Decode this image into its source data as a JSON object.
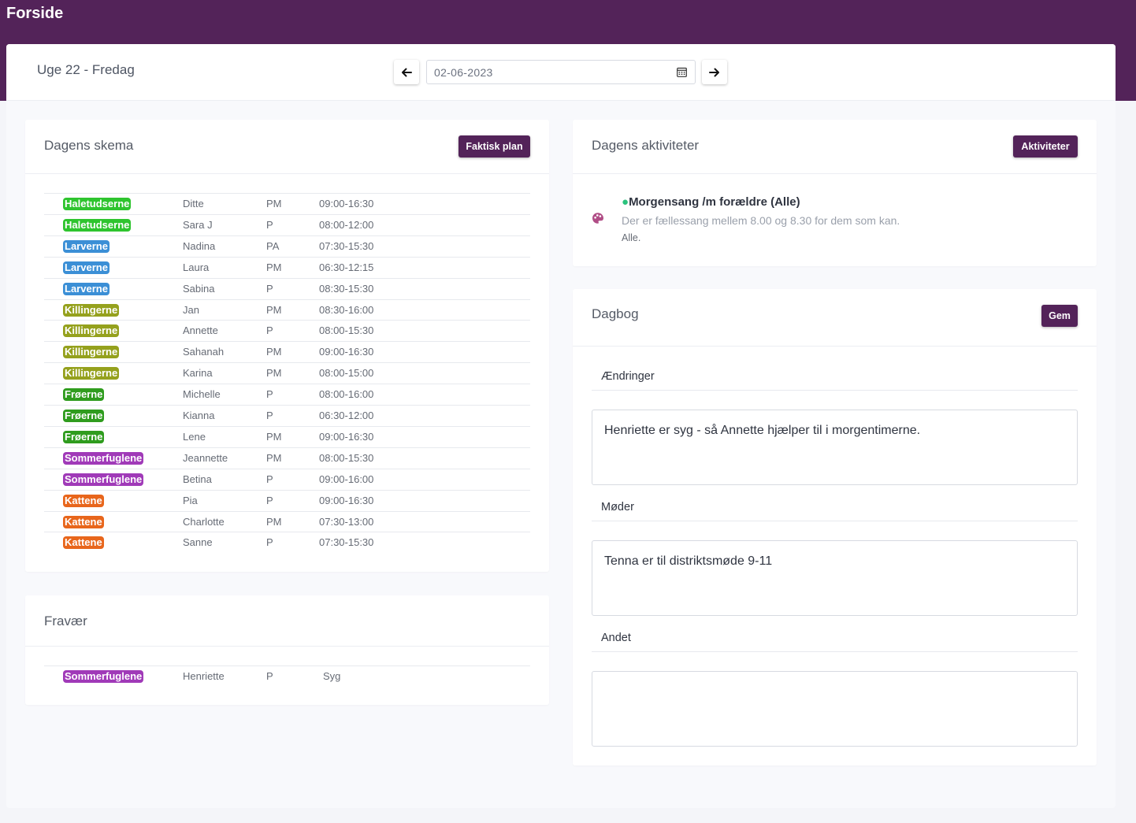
{
  "page": {
    "title": "Forside"
  },
  "header": {
    "week_label": "Uge 22 - Fredag",
    "date_value": "02-06-2023",
    "prev_icon": "arrow-left-icon",
    "next_icon": "arrow-right-icon",
    "calendar_icon": "calendar-icon"
  },
  "schedule": {
    "title": "Dagens skema",
    "button_label": "Faktisk plan",
    "rows": [
      {
        "group": "Haletudserne",
        "color": "#2ec42e",
        "name": "Ditte",
        "code": "PM",
        "time": "09:00-16:30"
      },
      {
        "group": "Haletudserne",
        "color": "#2ec42e",
        "name": "Sara J",
        "code": "P",
        "time": "08:00-12:00"
      },
      {
        "group": "Larverne",
        "color": "#3b8fd6",
        "name": "Nadina",
        "code": "PA",
        "time": "07:30-15:30"
      },
      {
        "group": "Larverne",
        "color": "#3b8fd6",
        "name": "Laura",
        "code": "PM",
        "time": "06:30-12:15"
      },
      {
        "group": "Larverne",
        "color": "#3b8fd6",
        "name": "Sabina",
        "code": "P",
        "time": "08:30-15:30"
      },
      {
        "group": "Killingerne",
        "color": "#95a11d",
        "name": "Jan",
        "code": "PM",
        "time": "08:30-16:00"
      },
      {
        "group": "Killingerne",
        "color": "#95a11d",
        "name": "Annette",
        "code": "P",
        "time": "08:00-15:30"
      },
      {
        "group": "Killingerne",
        "color": "#95a11d",
        "name": "Sahanah",
        "code": "PM",
        "time": "09:00-16:30"
      },
      {
        "group": "Killingerne",
        "color": "#95a11d",
        "name": "Karina",
        "code": "PM",
        "time": "08:00-15:00"
      },
      {
        "group": "Frøerne",
        "color": "#2f9c1e",
        "name": "Michelle",
        "code": "P",
        "time": "08:00-16:00"
      },
      {
        "group": "Frøerne",
        "color": "#2f9c1e",
        "name": "Kianna",
        "code": "P",
        "time": "06:30-12:00"
      },
      {
        "group": "Frøerne",
        "color": "#2f9c1e",
        "name": "Lene",
        "code": "PM",
        "time": "09:00-16:30"
      },
      {
        "group": "Sommerfuglene",
        "color": "#a03ab8",
        "name": "Jeannette",
        "code": "PM",
        "time": "08:00-15:30"
      },
      {
        "group": "Sommerfuglene",
        "color": "#a03ab8",
        "name": "Betina",
        "code": "P",
        "time": "09:00-16:00"
      },
      {
        "group": "Kattene",
        "color": "#e8661c",
        "name": "Pia",
        "code": "P",
        "time": "09:00-16:30"
      },
      {
        "group": "Kattene",
        "color": "#e8661c",
        "name": "Charlotte",
        "code": "PM",
        "time": "07:30-13:00"
      },
      {
        "group": "Kattene",
        "color": "#e8661c",
        "name": "Sanne",
        "code": "P",
        "time": "07:30-15:30"
      }
    ]
  },
  "absence": {
    "title": "Fravær",
    "rows": [
      {
        "group": "Sommerfuglene",
        "color": "#a03ab8",
        "name": "Henriette",
        "code": "P",
        "reason": "Syg"
      }
    ]
  },
  "activities": {
    "title": "Dagens aktiviteter",
    "button_label": "Aktiviteter",
    "items": [
      {
        "icon": "palette-icon",
        "dot": "●",
        "title": "Morgensang /m forældre (Alle)",
        "description": "Der er fællessang mellem 8.00 og 8.30 for dem som kan.",
        "audience": "Alle."
      }
    ]
  },
  "diary": {
    "title": "Dagbog",
    "button_label": "Gem",
    "sections": [
      {
        "label": "Ændringer",
        "text": "Henriette er syg - så Annette hjælper til i morgentimerne."
      },
      {
        "label": "Møder",
        "text": "Tenna er til distriktsmøde 9-11"
      },
      {
        "label": "Andet",
        "text": ""
      }
    ]
  },
  "colors": {
    "brand": "#532359",
    "activity_dot": "#2bc37d",
    "activity_icon": "#b04d86"
  }
}
